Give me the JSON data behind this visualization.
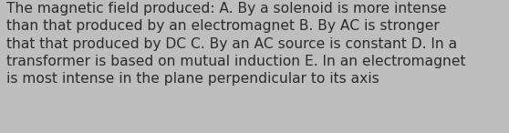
{
  "text": "The magnetic field produced: A. By a solenoid is more intense\nthan that produced by an electromagnet B. By AC is stronger\nthat that produced by DC C. By an AC source is constant D. In a\ntransformer is based on mutual induction E. In an electromagnet\nis most intense in the plane perpendicular to its axis",
  "background_color": "#bebebe",
  "text_color": "#2b2b2b",
  "font_size": 11.2,
  "font_family": "DejaVu Sans",
  "fig_width": 5.58,
  "fig_height": 1.46,
  "dpi": 100
}
